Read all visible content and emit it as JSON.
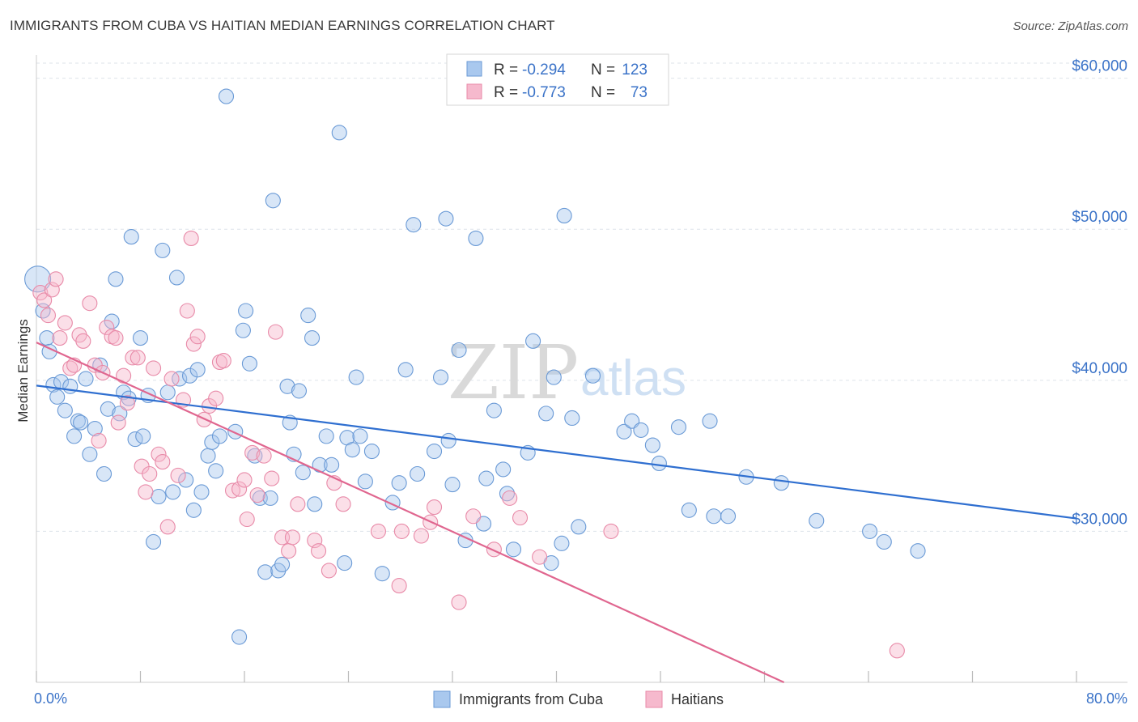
{
  "header": {
    "title": "IMMIGRANTS FROM CUBA VS HAITIAN MEDIAN EARNINGS CORRELATION CHART",
    "source": "Source: ZipAtlas.com"
  },
  "watermark": {
    "zip": "ZIP",
    "atlas": "atlas"
  },
  "legend": {
    "rows": [
      {
        "r_label": "R =",
        "r_value": "-0.294",
        "n_label": "N =",
        "n_value": "123"
      },
      {
        "r_label": "R =",
        "r_value": "-0.773",
        "n_label": "N =",
        "n_value": "73"
      }
    ]
  },
  "bottom_legend": {
    "items": [
      {
        "label": "Immigrants from Cuba"
      },
      {
        "label": "Haitians"
      }
    ]
  },
  "colors": {
    "blue_fill": "#a9c8ee",
    "blue_stroke": "#6a9ad6",
    "blue_line": "#2f6fd0",
    "pink_fill": "#f6b9cd",
    "pink_stroke": "#e88aa8",
    "pink_line": "#e0668f",
    "grid": "#dde3ea",
    "tick_label": "#3b73c8"
  },
  "chart_data": {
    "type": "scatter",
    "title": "IMMIGRANTS FROM CUBA VS HAITIAN MEDIAN EARNINGS CORRELATION CHART",
    "xlabel": "",
    "ylabel": "Median Earnings",
    "xlim": [
      0,
      80
    ],
    "ylim": [
      20000,
      61000
    ],
    "x_tick_labels": [
      "0.0%",
      "80.0%"
    ],
    "y_ticks": [
      30000,
      40000,
      50000,
      60000
    ],
    "y_tick_labels": [
      "$30,000",
      "$40,000",
      "$50,000",
      "$60,000"
    ],
    "grid": true,
    "series": [
      {
        "name": "Immigrants from Cuba",
        "r": -0.294,
        "n": 123,
        "trend": {
          "x": [
            0,
            80
          ],
          "y": [
            39650,
            30850
          ]
        },
        "points": [
          [
            0.1,
            46700
          ],
          [
            0.5,
            44600
          ],
          [
            0.8,
            42800
          ],
          [
            1.0,
            41900
          ],
          [
            1.3,
            39700
          ],
          [
            1.6,
            38900
          ],
          [
            1.9,
            39900
          ],
          [
            2.2,
            38000
          ],
          [
            2.6,
            39600
          ],
          [
            2.9,
            36300
          ],
          [
            3.2,
            37300
          ],
          [
            3.4,
            37200
          ],
          [
            3.8,
            40100
          ],
          [
            4.1,
            35100
          ],
          [
            4.5,
            36800
          ],
          [
            4.9,
            41000
          ],
          [
            5.2,
            33800
          ],
          [
            5.5,
            38100
          ],
          [
            5.8,
            43900
          ],
          [
            6.1,
            46700
          ],
          [
            6.4,
            37800
          ],
          [
            6.7,
            39200
          ],
          [
            7.1,
            38800
          ],
          [
            7.3,
            49500
          ],
          [
            7.6,
            36100
          ],
          [
            8.0,
            42800
          ],
          [
            8.2,
            36300
          ],
          [
            8.6,
            39000
          ],
          [
            9.0,
            29300
          ],
          [
            9.4,
            32300
          ],
          [
            9.7,
            48600
          ],
          [
            10.1,
            39200
          ],
          [
            10.5,
            32600
          ],
          [
            10.8,
            46800
          ],
          [
            11.0,
            40100
          ],
          [
            11.5,
            33400
          ],
          [
            11.8,
            40300
          ],
          [
            12.1,
            31400
          ],
          [
            12.4,
            40700
          ],
          [
            12.7,
            32600
          ],
          [
            13.2,
            35000
          ],
          [
            13.5,
            35900
          ],
          [
            13.8,
            34000
          ],
          [
            14.1,
            36300
          ],
          [
            14.6,
            58800
          ],
          [
            15.3,
            36600
          ],
          [
            15.6,
            23000
          ],
          [
            15.9,
            43300
          ],
          [
            16.1,
            44600
          ],
          [
            16.4,
            41100
          ],
          [
            16.8,
            35000
          ],
          [
            17.2,
            32200
          ],
          [
            17.6,
            27300
          ],
          [
            18.0,
            32200
          ],
          [
            18.2,
            51900
          ],
          [
            18.6,
            27400
          ],
          [
            18.9,
            27800
          ],
          [
            19.3,
            39600
          ],
          [
            19.5,
            37200
          ],
          [
            19.8,
            35100
          ],
          [
            20.2,
            39300
          ],
          [
            20.5,
            33900
          ],
          [
            20.9,
            44300
          ],
          [
            21.2,
            42800
          ],
          [
            21.4,
            31800
          ],
          [
            21.8,
            34400
          ],
          [
            22.3,
            36300
          ],
          [
            22.7,
            34400
          ],
          [
            23.3,
            56400
          ],
          [
            23.7,
            27900
          ],
          [
            23.9,
            36200
          ],
          [
            24.3,
            35400
          ],
          [
            24.6,
            40200
          ],
          [
            24.9,
            36300
          ],
          [
            25.3,
            33300
          ],
          [
            25.8,
            35300
          ],
          [
            26.6,
            27200
          ],
          [
            27.4,
            31900
          ],
          [
            27.9,
            33200
          ],
          [
            28.4,
            40700
          ],
          [
            29.0,
            50300
          ],
          [
            29.3,
            33800
          ],
          [
            30.6,
            35300
          ],
          [
            31.1,
            40200
          ],
          [
            31.5,
            50700
          ],
          [
            31.7,
            36000
          ],
          [
            32.0,
            33100
          ],
          [
            32.5,
            42000
          ],
          [
            33.0,
            29400
          ],
          [
            33.8,
            49400
          ],
          [
            34.4,
            30500
          ],
          [
            34.6,
            33500
          ],
          [
            35.2,
            38000
          ],
          [
            35.9,
            34100
          ],
          [
            36.2,
            32500
          ],
          [
            36.7,
            28800
          ],
          [
            37.8,
            35200
          ],
          [
            38.2,
            42600
          ],
          [
            39.2,
            37800
          ],
          [
            39.6,
            27900
          ],
          [
            39.8,
            40200
          ],
          [
            40.4,
            29200
          ],
          [
            40.6,
            50900
          ],
          [
            41.2,
            37500
          ],
          [
            41.7,
            30300
          ],
          [
            42.8,
            40300
          ],
          [
            45.2,
            36600
          ],
          [
            45.8,
            37300
          ],
          [
            46.5,
            36700
          ],
          [
            47.4,
            35700
          ],
          [
            47.9,
            34500
          ],
          [
            49.4,
            36900
          ],
          [
            50.2,
            31400
          ],
          [
            51.8,
            37300
          ],
          [
            52.1,
            31000
          ],
          [
            53.2,
            31000
          ],
          [
            54.6,
            33600
          ],
          [
            57.3,
            33200
          ],
          [
            60.0,
            30700
          ],
          [
            64.1,
            30000
          ],
          [
            65.2,
            29300
          ],
          [
            67.8,
            28700
          ]
        ]
      },
      {
        "name": "Haitians",
        "r": -0.773,
        "n": 73,
        "trend": {
          "x": [
            0,
            57.5
          ],
          "y": [
            42500,
            20000
          ]
        },
        "points": [
          [
            0.3,
            45800
          ],
          [
            0.6,
            45300
          ],
          [
            0.9,
            44300
          ],
          [
            1.2,
            46000
          ],
          [
            1.5,
            46700
          ],
          [
            1.8,
            42800
          ],
          [
            2.2,
            43800
          ],
          [
            2.6,
            40800
          ],
          [
            2.9,
            41000
          ],
          [
            3.3,
            43000
          ],
          [
            3.6,
            42600
          ],
          [
            4.1,
            45100
          ],
          [
            4.5,
            41000
          ],
          [
            4.8,
            36000
          ],
          [
            5.1,
            40500
          ],
          [
            5.4,
            43500
          ],
          [
            5.8,
            42900
          ],
          [
            6.1,
            42800
          ],
          [
            6.3,
            37200
          ],
          [
            6.7,
            40300
          ],
          [
            7.0,
            38500
          ],
          [
            7.4,
            41500
          ],
          [
            7.8,
            41500
          ],
          [
            8.1,
            34300
          ],
          [
            8.4,
            32600
          ],
          [
            8.7,
            33800
          ],
          [
            9.0,
            40800
          ],
          [
            9.4,
            35100
          ],
          [
            9.7,
            34600
          ],
          [
            10.1,
            30300
          ],
          [
            10.4,
            40100
          ],
          [
            10.9,
            33700
          ],
          [
            11.3,
            38700
          ],
          [
            11.6,
            44600
          ],
          [
            11.9,
            49400
          ],
          [
            12.1,
            42400
          ],
          [
            12.4,
            42900
          ],
          [
            12.9,
            37400
          ],
          [
            13.3,
            38300
          ],
          [
            13.8,
            38800
          ],
          [
            14.1,
            41200
          ],
          [
            14.4,
            41300
          ],
          [
            15.1,
            32700
          ],
          [
            15.6,
            32800
          ],
          [
            16.0,
            33400
          ],
          [
            16.2,
            30800
          ],
          [
            16.6,
            35200
          ],
          [
            17.0,
            32400
          ],
          [
            17.5,
            35000
          ],
          [
            18.1,
            33500
          ],
          [
            18.4,
            43200
          ],
          [
            18.9,
            29600
          ],
          [
            19.4,
            28700
          ],
          [
            19.7,
            29600
          ],
          [
            20.1,
            31800
          ],
          [
            21.4,
            29400
          ],
          [
            21.7,
            28700
          ],
          [
            22.5,
            27400
          ],
          [
            22.9,
            33200
          ],
          [
            23.6,
            31800
          ],
          [
            26.3,
            30000
          ],
          [
            27.9,
            26400
          ],
          [
            28.1,
            30000
          ],
          [
            29.6,
            29700
          ],
          [
            30.3,
            30600
          ],
          [
            30.6,
            31600
          ],
          [
            32.5,
            25300
          ],
          [
            33.6,
            31000
          ],
          [
            35.2,
            28800
          ],
          [
            36.4,
            32200
          ],
          [
            37.2,
            30900
          ],
          [
            38.7,
            28300
          ],
          [
            44.2,
            30000
          ],
          [
            66.2,
            22100
          ]
        ]
      }
    ]
  }
}
